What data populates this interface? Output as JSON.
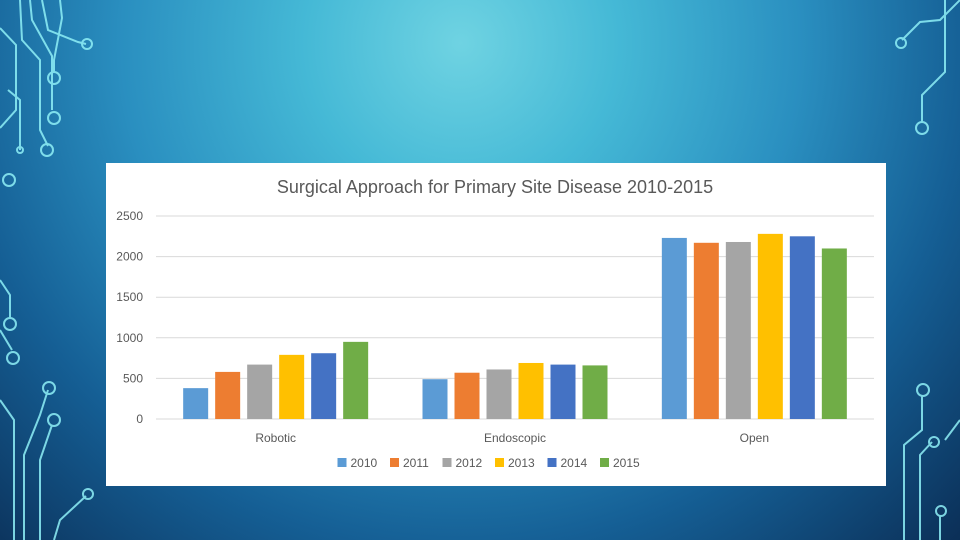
{
  "chart_data": {
    "type": "bar",
    "title": "Surgical Approach for Primary Site Disease 2010-2015",
    "xlabel": "",
    "ylabel": "",
    "ylim": [
      0,
      2500
    ],
    "yticks": [
      0,
      500,
      1000,
      1500,
      2000,
      2500
    ],
    "grid": true,
    "legend_position": "bottom",
    "categories": [
      "Robotic",
      "Endoscopic",
      "Open"
    ],
    "series": [
      {
        "name": "2010",
        "color": "#5B9BD5",
        "values": [
          380,
          490,
          2230
        ]
      },
      {
        "name": "2011",
        "color": "#ED7D31",
        "values": [
          580,
          570,
          2170
        ]
      },
      {
        "name": "2012",
        "color": "#A5A5A5",
        "values": [
          670,
          610,
          2180
        ]
      },
      {
        "name": "2013",
        "color": "#FFC000",
        "values": [
          790,
          690,
          2280
        ]
      },
      {
        "name": "2014",
        "color": "#4472C4",
        "values": [
          810,
          670,
          2250
        ]
      },
      {
        "name": "2015",
        "color": "#70AD47",
        "values": [
          950,
          660,
          2100
        ]
      }
    ]
  }
}
